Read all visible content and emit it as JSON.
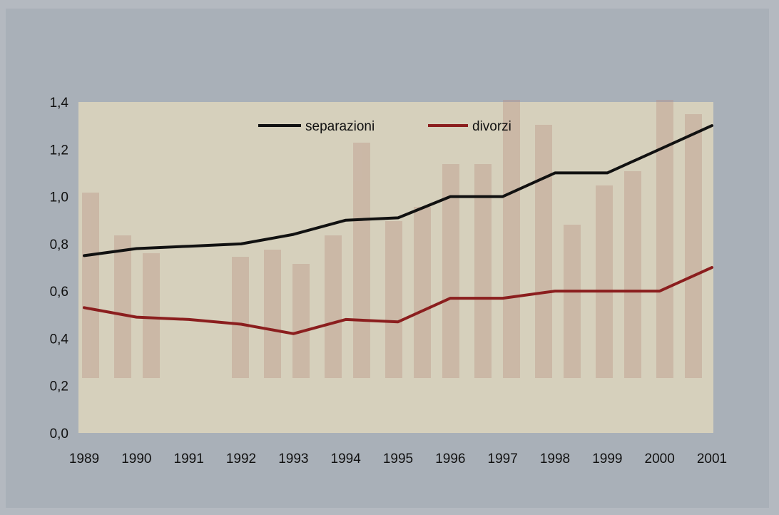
{
  "chart_data": {
    "type": "line",
    "title": "",
    "xlabel": "",
    "ylabel": "",
    "categories": [
      "1989",
      "1990",
      "1991",
      "1992",
      "1993",
      "1994",
      "1995",
      "1996",
      "1997",
      "1998",
      "1999",
      "2000",
      "2001"
    ],
    "ylim": [
      0,
      1.4
    ],
    "yticks": [
      "0,0",
      "0,2",
      "0,4",
      "0,6",
      "0,8",
      "1,0",
      "1,2",
      "1,4"
    ],
    "grid": false,
    "legend_position": "top-center",
    "series": [
      {
        "name": "separazioni",
        "color": "#111111",
        "values": [
          0.75,
          0.78,
          0.79,
          0.8,
          0.84,
          0.9,
          0.91,
          1.0,
          1.0,
          1.1,
          1.1,
          1.2,
          1.3
        ]
      },
      {
        "name": "divorzi",
        "color": "#8b1e1e",
        "values": [
          0.53,
          0.49,
          0.48,
          0.46,
          0.42,
          0.48,
          0.47,
          0.57,
          0.57,
          0.6,
          0.6,
          0.6,
          0.7
        ]
      }
    ]
  },
  "colors": {
    "plot_background": "#d6d0bc",
    "page_background": "#b4b9c0",
    "panel_background": "#a9b0b8"
  }
}
